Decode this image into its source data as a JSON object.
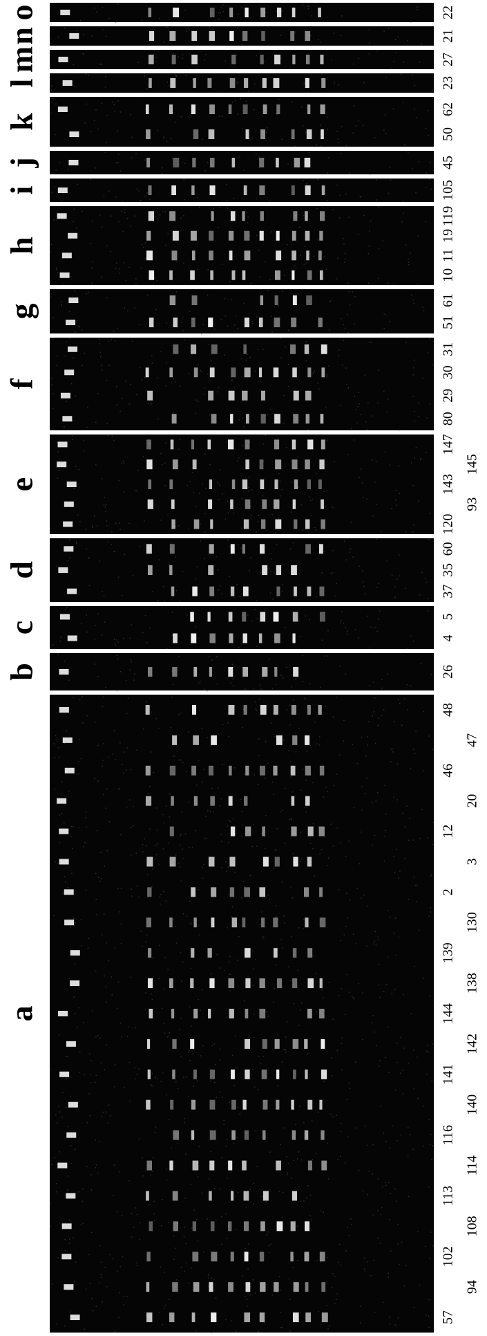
{
  "panels": [
    {
      "letter": "o",
      "lanes": [
        "22"
      ]
    },
    {
      "letter": "n",
      "lanes": [
        "21"
      ]
    },
    {
      "letter": "m",
      "lanes": [
        "27"
      ]
    },
    {
      "letter": "l",
      "lanes": [
        "23"
      ]
    },
    {
      "letter": "k",
      "lanes": [
        "62",
        "50"
      ]
    },
    {
      "letter": "j",
      "lanes": [
        "45"
      ]
    },
    {
      "letter": "i",
      "lanes": [
        "105"
      ]
    },
    {
      "letter": "h",
      "lanes": [
        "119",
        "19",
        "11",
        "10"
      ]
    },
    {
      "letter": "g",
      "lanes": [
        "61",
        "51"
      ]
    },
    {
      "letter": "f",
      "lanes": [
        "31",
        "30",
        "29",
        "80"
      ]
    },
    {
      "letter": "e",
      "lanes": [
        "147",
        "145",
        "143",
        "93",
        "120"
      ]
    },
    {
      "letter": "d",
      "lanes": [
        "60",
        "35",
        "37"
      ]
    },
    {
      "letter": "c",
      "lanes": [
        "5",
        "4"
      ]
    },
    {
      "letter": "b",
      "lanes": [
        "26"
      ]
    },
    {
      "letter": "a",
      "lanes": [
        "48",
        "47",
        "46",
        "20",
        "12",
        "3",
        "2",
        "130",
        "139",
        "138",
        "144",
        "142",
        "141",
        "140",
        "116",
        "114",
        "113",
        "108",
        "102",
        "94",
        "57"
      ]
    }
  ]
}
